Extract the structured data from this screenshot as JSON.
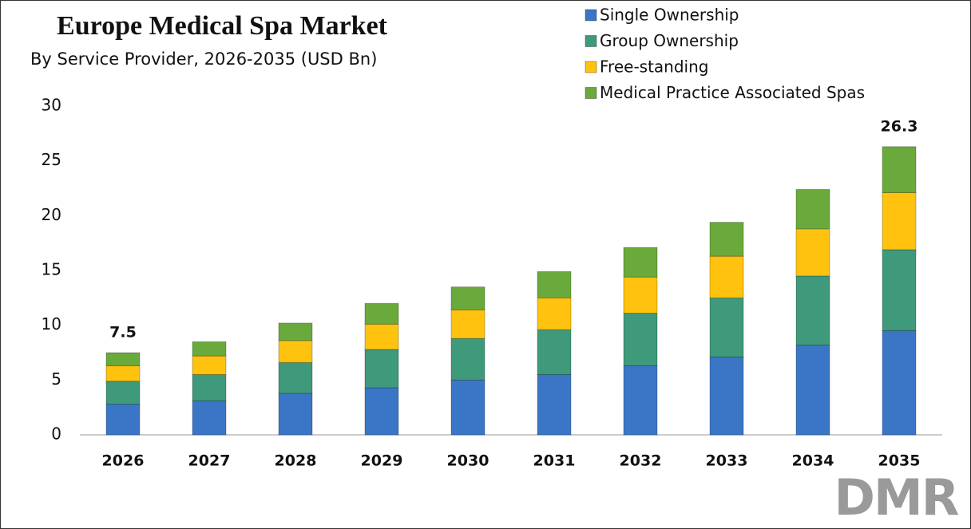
{
  "chart_data": {
    "type": "stacked-bar",
    "title": "Europe Medical Spa Market",
    "subtitle": "By Service Provider, 2026-2035 (USD Bn)",
    "categories": [
      "2026",
      "2027",
      "2028",
      "2029",
      "2030",
      "2031",
      "2032",
      "2033",
      "2034",
      "2035"
    ],
    "series": [
      {
        "name": "Single Ownership",
        "color": "#3b76c6",
        "values": [
          2.8,
          3.1,
          3.8,
          4.3,
          5.0,
          5.5,
          6.3,
          7.1,
          8.2,
          9.5
        ]
      },
      {
        "name": "Group Ownership",
        "color": "#3e9a7a",
        "values": [
          2.1,
          2.4,
          2.8,
          3.5,
          3.8,
          4.1,
          4.8,
          5.4,
          6.3,
          7.4
        ]
      },
      {
        "name": "Free-standing",
        "color": "#ffc20e",
        "values": [
          1.4,
          1.7,
          2.0,
          2.3,
          2.6,
          2.9,
          3.3,
          3.8,
          4.3,
          5.2
        ]
      },
      {
        "name": "Medical Practice Associated Spas",
        "color": "#6aaa3c",
        "values": [
          1.2,
          1.3,
          1.6,
          1.9,
          2.1,
          2.4,
          2.7,
          3.1,
          3.6,
          4.2
        ]
      }
    ],
    "total_labels": [
      7.5,
      null,
      null,
      null,
      null,
      null,
      null,
      null,
      null,
      26.3
    ],
    "ylim": [
      0,
      30
    ],
    "yticks": [
      0,
      5,
      10,
      15,
      20,
      25,
      30
    ],
    "grid": false,
    "legend": "top-right",
    "logo": "DMR"
  }
}
